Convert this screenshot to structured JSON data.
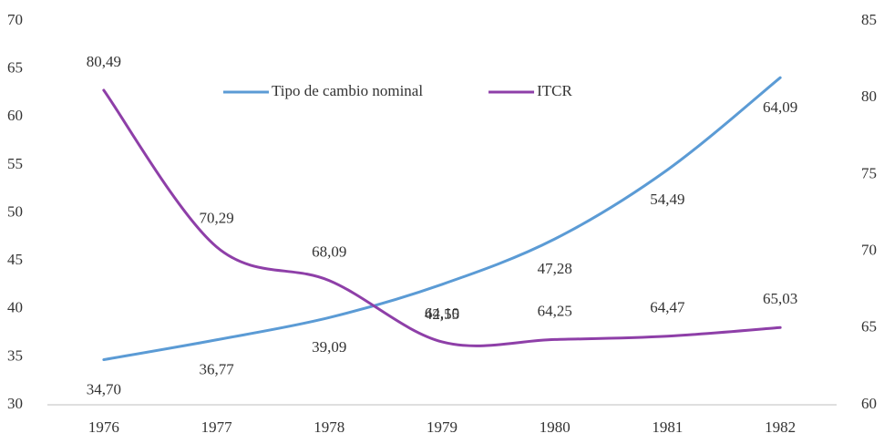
{
  "chart_data": {
    "type": "line",
    "categories": [
      "1976",
      "1977",
      "1978",
      "1979",
      "1980",
      "1981",
      "1982"
    ],
    "series": [
      {
        "name": "Tipo de cambio nominal",
        "color": "#5b9bd5",
        "axis": "y",
        "values": [
          34.7,
          36.77,
          39.09,
          42.55,
          47.28,
          54.49,
          64.09
        ],
        "value_labels": [
          "34,70",
          "36,77",
          "39,09",
          "42,55",
          "47,28",
          "54,49",
          "64,09"
        ]
      },
      {
        "name": "ITCR",
        "color": "#8e3fa8",
        "axis": "y2",
        "values": [
          80.49,
          70.29,
          68.09,
          64.1,
          64.25,
          64.47,
          65.03
        ],
        "value_labels": [
          "80,49",
          "70,29",
          "68,09",
          "64,10",
          "64,25",
          "64,47",
          "65,03"
        ]
      }
    ],
    "ylim": [
      30,
      70
    ],
    "yticks": [
      30,
      35,
      40,
      45,
      50,
      55,
      60,
      65,
      70
    ],
    "y2lim": [
      60,
      85
    ],
    "y2ticks": [
      60,
      65,
      70,
      75,
      80,
      85
    ],
    "grid": false,
    "legend": "top"
  }
}
